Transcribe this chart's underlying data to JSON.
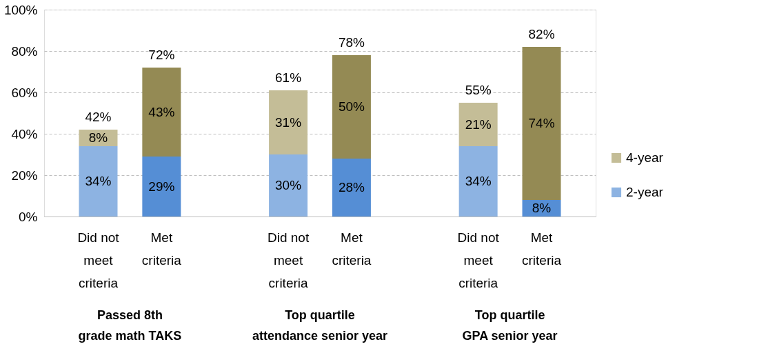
{
  "chart_data": {
    "type": "bar",
    "stacked": true,
    "categories": [
      "Did not meet criteria",
      "Met criteria",
      "Did not meet criteria",
      "Met criteria",
      "Did not meet criteria",
      "Met criteria"
    ],
    "series": [
      {
        "name": "2-year",
        "color": "#8db3e2",
        "colors": [
          "#8db3e2",
          "#558ed5",
          "#8db3e2",
          "#558ed5",
          "#8db3e2",
          "#558ed5"
        ],
        "values": [
          34,
          29,
          30,
          28,
          34,
          8
        ],
        "value_labels": [
          "34%",
          "29%",
          "30%",
          "28%",
          "34%",
          "8%"
        ]
      },
      {
        "name": "4-year",
        "color": "#c4bd97",
        "colors": [
          "#c4bd97",
          "#948a54",
          "#c4bd97",
          "#948a54",
          "#c4bd97",
          "#948a54"
        ],
        "values": [
          8,
          43,
          31,
          50,
          21,
          74
        ],
        "value_labels": [
          "8%",
          "43%",
          "31%",
          "50%",
          "21%",
          "74%"
        ]
      }
    ],
    "totals": [
      "42%",
      "72%",
      "61%",
      "78%",
      "55%",
      "82%"
    ],
    "ylim": [
      0,
      100
    ],
    "yticks": [
      {
        "value": 0,
        "label": "0%"
      },
      {
        "value": 20,
        "label": "20%"
      },
      {
        "value": 40,
        "label": "40%"
      },
      {
        "value": 60,
        "label": "60%"
      },
      {
        "value": 80,
        "label": "80%"
      },
      {
        "value": 100,
        "label": "100%"
      }
    ],
    "grid": "y",
    "legend": "right",
    "annotations": [
      "Passed 8th grade math TAKS",
      "Top quartile attendance senior year",
      "Top quartile GPA senior year"
    ]
  }
}
